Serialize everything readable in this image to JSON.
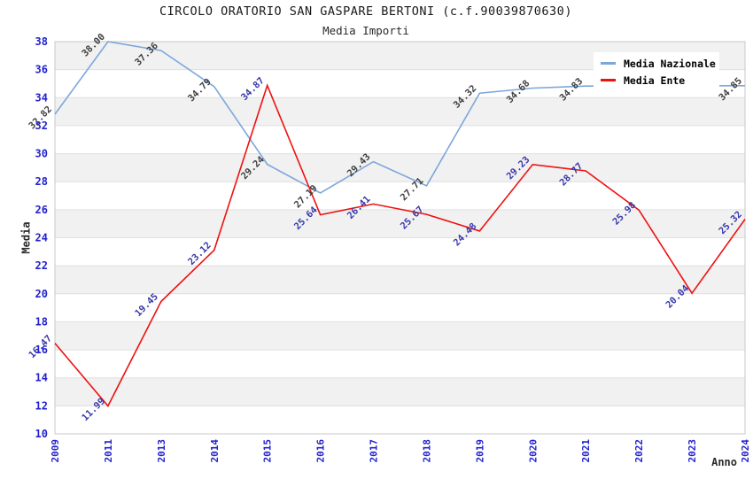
{
  "page": {
    "title": "CIRCOLO ORATORIO SAN GASPARE BERTONI (c.f.90039870630)",
    "subtitle": "Media Importi"
  },
  "axes": {
    "y_label": "Media",
    "x_label": "Anno"
  },
  "legend": {
    "items": [
      {
        "label": "Media Nazionale",
        "color": "#7da7db"
      },
      {
        "label": "Media Ente",
        "color": "#ee1111"
      }
    ]
  },
  "colors": {
    "tick_label": "#2222cc",
    "nazionale_value_label": "#3f3f3f",
    "ente_value_label": "#3838aa",
    "band": "#f1f1f1",
    "gridline": "#e0e0e0",
    "plot_border": "#c8c8c8"
  },
  "chart_data": {
    "type": "line",
    "title": "CIRCOLO ORATORIO SAN GASPARE BERTONI (c.f.90039870630)",
    "subtitle": "Media Importi",
    "xlabel": "Anno",
    "ylabel": "Media",
    "categories": [
      "2009",
      "2011",
      "2013",
      "2014",
      "2015",
      "2016",
      "2017",
      "2018",
      "2019",
      "2020",
      "2021",
      "2022",
      "2023",
      "2024"
    ],
    "series": [
      {
        "name": "Media Nazionale",
        "color": "#7da7db",
        "label_color": "#3f3f3f",
        "values": [
          32.82,
          38.0,
          37.36,
          34.79,
          29.24,
          27.19,
          29.43,
          27.71,
          34.32,
          34.68,
          34.83,
          null,
          null,
          34.85
        ]
      },
      {
        "name": "Media Ente",
        "color": "#ee1111",
        "label_color": "#3838aa",
        "values": [
          16.47,
          11.99,
          19.45,
          23.12,
          34.87,
          25.64,
          26.41,
          25.67,
          24.48,
          29.23,
          28.77,
          25.98,
          20.04,
          25.32
        ]
      }
    ],
    "ylim": [
      10,
      38
    ],
    "y_ticks": [
      10,
      12,
      14,
      16,
      18,
      20,
      22,
      24,
      26,
      28,
      30,
      32,
      34,
      36,
      38
    ],
    "grid": "horizontal-bands-alternating",
    "legend_position": "top-right",
    "note_hidden_points": "Media Nazionale 2022 and 2023 points are covered by the legend box"
  }
}
